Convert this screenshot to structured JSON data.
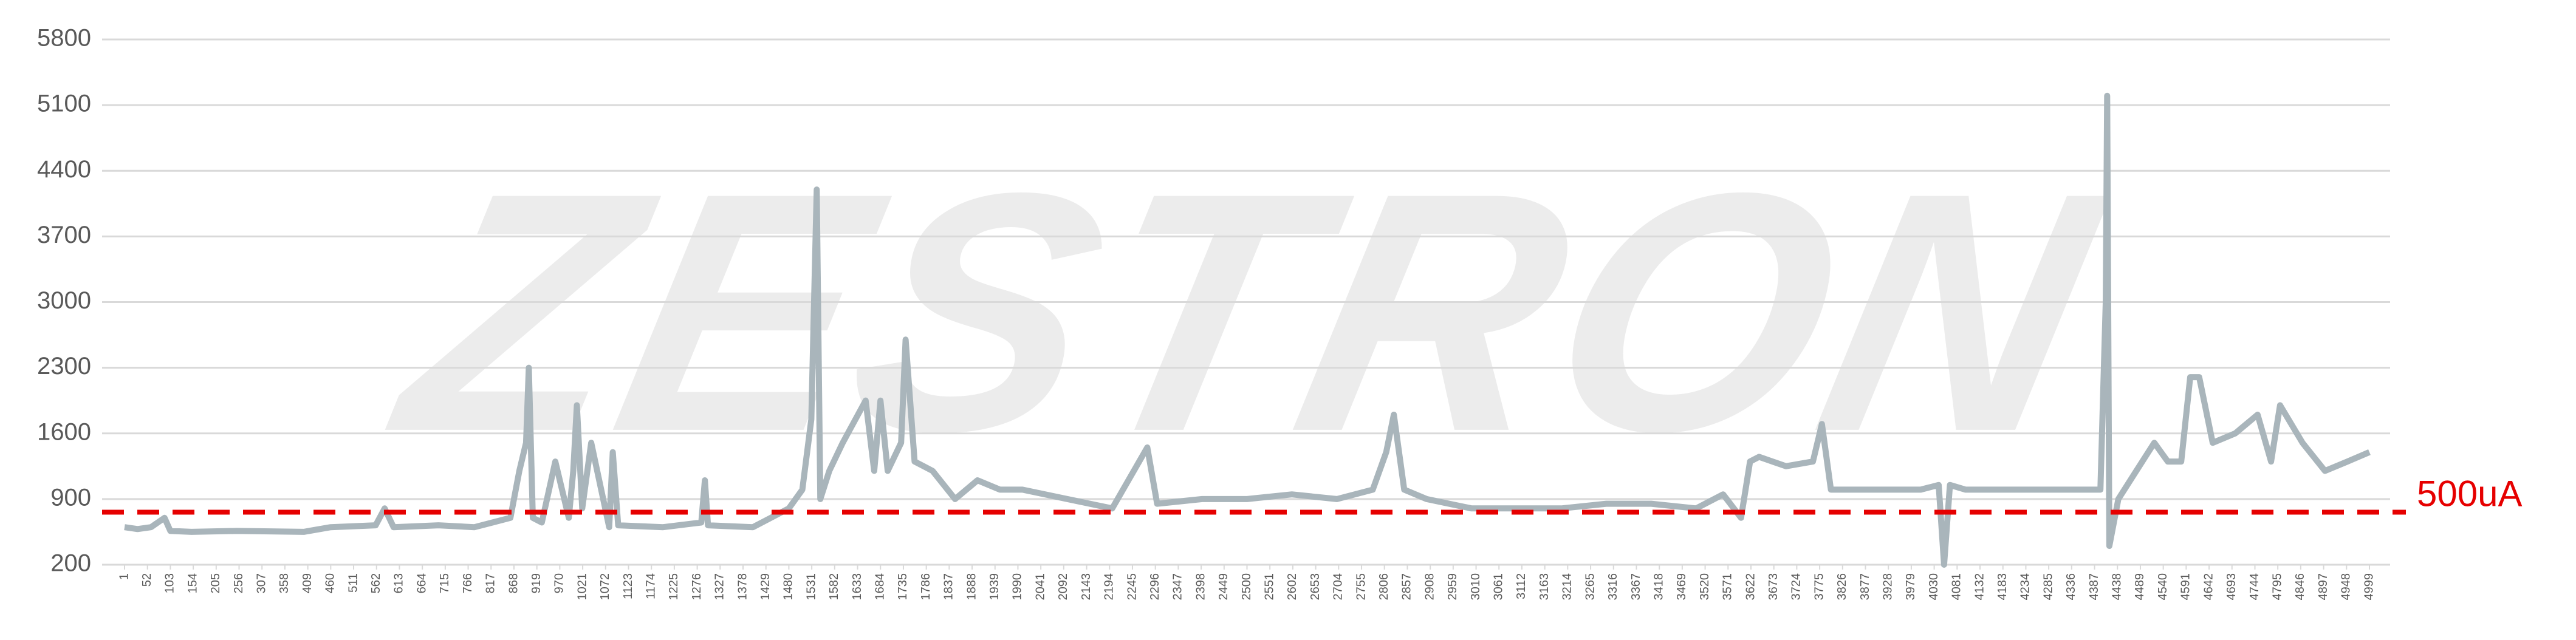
{
  "chart_data": {
    "type": "line",
    "watermark": "ZESTRON",
    "x": [
      1,
      30,
      60,
      90,
      103,
      150,
      250,
      400,
      460,
      560,
      580,
      600,
      700,
      780,
      820,
      860,
      880,
      895,
      901,
      910,
      930,
      960,
      990,
      1000,
      1008,
      1020,
      1040,
      1080,
      1088,
      1100,
      1200,
      1285,
      1293,
      1300,
      1400,
      1480,
      1510,
      1530,
      1542,
      1550,
      1570,
      1600,
      1651,
      1670,
      1684,
      1700,
      1730,
      1740,
      1760,
      1800,
      1850,
      1900,
      1950,
      2000,
      2100,
      2200,
      2278,
      2300,
      2400,
      2500,
      2600,
      2700,
      2780,
      2810,
      2827,
      2850,
      2900,
      3000,
      3100,
      3200,
      3300,
      3400,
      3500,
      3560,
      3600,
      3620,
      3640,
      3700,
      3760,
      3780,
      3800,
      3900,
      4000,
      4040,
      4052,
      4065,
      4100,
      4200,
      4280,
      4400,
      4412,
      4415,
      4420,
      4440,
      4480,
      4520,
      4550,
      4580,
      4600,
      4620,
      4650,
      4700,
      4750,
      4780,
      4800,
      4850,
      4900,
      4950,
      4999
    ],
    "series": [
      {
        "color": "#a9b5bb",
        "values": [
          600,
          580,
          600,
          700,
          560,
          550,
          560,
          550,
          600,
          620,
          800,
          600,
          620,
          600,
          650,
          700,
          1200,
          1500,
          2300,
          700,
          650,
          1300,
          700,
          1200,
          1900,
          800,
          1500,
          600,
          1400,
          620,
          600,
          650,
          1100,
          620,
          600,
          800,
          1000,
          1750,
          4200,
          900,
          1200,
          1500,
          1950,
          1200,
          1950,
          1200,
          1500,
          2600,
          1300,
          1200,
          900,
          1100,
          1000,
          1000,
          900,
          800,
          1450,
          850,
          900,
          900,
          950,
          900,
          1000,
          1400,
          1800,
          1000,
          900,
          800,
          800,
          800,
          850,
          850,
          800,
          950,
          700,
          1300,
          1350,
          1250,
          1300,
          1700,
          1000,
          1000,
          1000,
          1050,
          200,
          1050,
          1000,
          1000,
          1000,
          1000,
          3000,
          5200,
          400,
          900,
          1200,
          1500,
          1300,
          1300,
          2200,
          2200,
          1500,
          1600,
          1800,
          1300,
          1900,
          1500,
          1200,
          1300,
          1400
        ]
      }
    ],
    "xlim": [
      1,
      4999
    ],
    "xticks": [
      1,
      52,
      103,
      154,
      205,
      256,
      307,
      358,
      409,
      460,
      511,
      562,
      613,
      664,
      715,
      766,
      817,
      868,
      919,
      970,
      1021,
      1072,
      1123,
      1174,
      1225,
      1276,
      1327,
      1378,
      1429,
      1480,
      1531,
      1582,
      1633,
      1684,
      1735,
      1786,
      1837,
      1888,
      1939,
      1990,
      2041,
      2092,
      2143,
      2194,
      2245,
      2296,
      2347,
      2398,
      2449,
      2500,
      2551,
      2602,
      2653,
      2704,
      2755,
      2806,
      2857,
      2908,
      2959,
      3010,
      3061,
      3112,
      3163,
      3214,
      3265,
      3316,
      3367,
      3418,
      3469,
      3520,
      3571,
      3622,
      3673,
      3724,
      3775,
      3826,
      3877,
      3928,
      3979,
      4030,
      4081,
      4132,
      4183,
      4234,
      4285,
      4336,
      4387,
      4438,
      4489,
      4540,
      4591,
      4642,
      4693,
      4744,
      4795,
      4846,
      4897,
      4948,
      4999
    ],
    "ylim": [
      200,
      5800
    ],
    "yticks": [
      200,
      900,
      1600,
      2300,
      3000,
      3700,
      4400,
      5100,
      5800
    ],
    "grid": true,
    "reference_line": {
      "value": 760,
      "label": "500uA",
      "color": "#e60000"
    }
  }
}
